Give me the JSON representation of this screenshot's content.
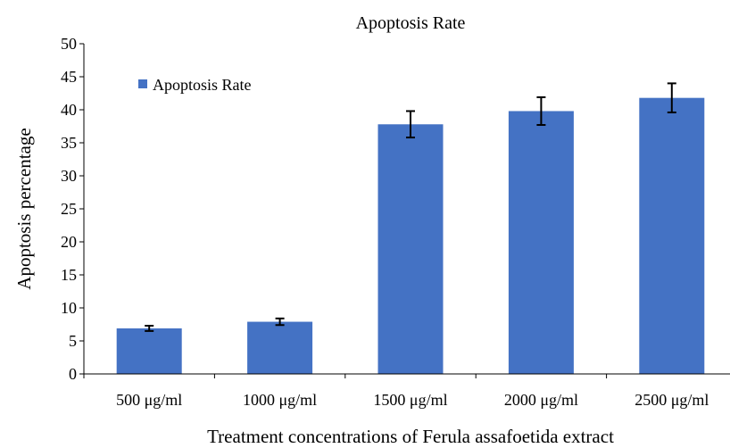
{
  "chart_data": {
    "type": "bar",
    "title": "Apoptosis Rate",
    "xlabel": "Treatment concentrations of Ferula assafoetida extract",
    "ylabel": "Apoptosis percentage",
    "categories": [
      "500 μg/ml",
      "1000 μg/ml",
      "1500 μg/ml",
      "2000 μg/ml",
      "2500 μg/ml"
    ],
    "series": [
      {
        "name": "Apoptosis Rate",
        "values": [
          6.9,
          7.9,
          37.8,
          39.8,
          41.8
        ],
        "errors": [
          0.4,
          0.5,
          2.0,
          2.1,
          2.2
        ]
      }
    ],
    "ylim": [
      0,
      50
    ],
    "yticks": [
      0,
      5,
      10,
      15,
      20,
      25,
      30,
      35,
      40,
      45,
      50
    ],
    "grid": false,
    "legend": "top-left",
    "bar_color": "#4472C4"
  }
}
